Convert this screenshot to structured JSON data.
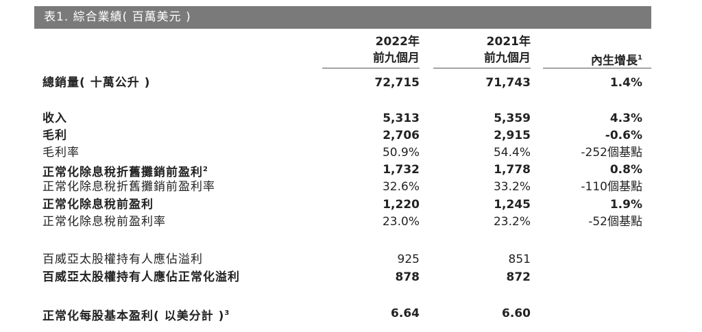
{
  "title": "表1. 綜合業績( 百萬美元 )",
  "headers": {
    "col1_line1": "2022年",
    "col1_line2": "前九個月",
    "col2_line1": "2021年",
    "col2_line2": "前九個月",
    "col3": "內生增長",
    "col3_sup": "1"
  },
  "rows": [
    {
      "label": "總銷量( 十萬公升 )",
      "v1": "72,715",
      "v2": "71,743",
      "v3": "1.4%",
      "bold": true
    },
    {
      "label": "收入",
      "v1": "5,313",
      "v2": "5,359",
      "v3": "4.3%",
      "bold": true
    },
    {
      "label": "毛利",
      "v1": "2,706",
      "v2": "2,915",
      "v3": "-0.6%",
      "bold": true
    },
    {
      "label": "毛利率",
      "v1": "50.9%",
      "v2": "54.4%",
      "v3": "-252個基點",
      "bold": false
    },
    {
      "label": "正常化除息稅折舊攤銷前盈利",
      "sup": "2",
      "v1": "1,732",
      "v2": "1,778",
      "v3": "0.8%",
      "bold": true
    },
    {
      "label": "正常化除息稅折舊攤銷前盈利率",
      "v1": "32.6%",
      "v2": "33.2%",
      "v3": "-110個基點",
      "bold": false
    },
    {
      "label": "正常化除息稅前盈利",
      "v1": "1,220",
      "v2": "1,245",
      "v3": "1.9%",
      "bold": true
    },
    {
      "label": "正常化除息稅前盈利率",
      "v1": "23.0%",
      "v2": "23.2%",
      "v3": "-52個基點",
      "bold": false
    },
    {
      "label": "百威亞太股權持有人應佔溢利",
      "v1": "925",
      "v2": "851",
      "v3": "",
      "bold": false
    },
    {
      "label": "百威亞太股權持有人應佔正常化溢利",
      "v1": "878",
      "v2": "872",
      "v3": "",
      "bold": true
    },
    {
      "label": "正常化每股基本盈利( 以美分計 )",
      "sup": "3",
      "v1": "6.64",
      "v2": "6.60",
      "v3": "",
      "bold": true
    }
  ]
}
